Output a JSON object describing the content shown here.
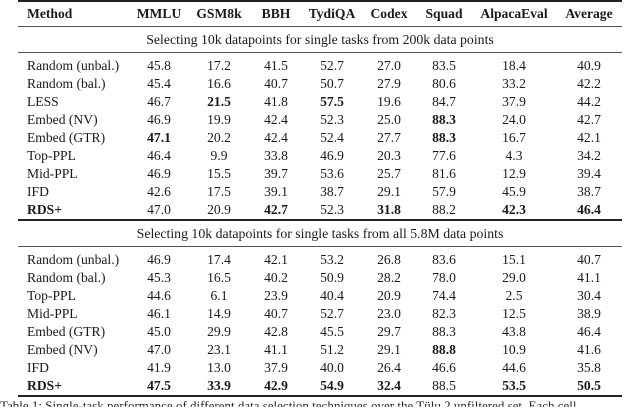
{
  "table": {
    "columns": [
      "Method",
      "MMLU",
      "GSM8k",
      "BBH",
      "TydiQA",
      "Codex",
      "Squad",
      "AlpacaEval",
      "Average"
    ],
    "sections": [
      {
        "title": "Selecting 10k datapoints for single tasks from 200k data points",
        "rows": [
          {
            "method": "Random (unbal.)",
            "values": [
              "45.8",
              "17.2",
              "41.5",
              "52.7",
              "27.0",
              "83.5",
              "18.4",
              "40.9"
            ],
            "bold": []
          },
          {
            "method": "Random (bal.)",
            "values": [
              "45.4",
              "16.6",
              "40.7",
              "50.7",
              "27.9",
              "80.6",
              "33.2",
              "42.2"
            ],
            "bold": []
          },
          {
            "method": "LESS",
            "values": [
              "46.7",
              "21.5",
              "41.8",
              "57.5",
              "19.6",
              "84.7",
              "37.9",
              "44.2"
            ],
            "bold": [
              1,
              3
            ]
          },
          {
            "method": "Embed (NV)",
            "values": [
              "46.9",
              "19.9",
              "42.4",
              "52.3",
              "25.0",
              "88.3",
              "24.0",
              "42.7"
            ],
            "bold": [
              5
            ]
          },
          {
            "method": "Embed (GTR)",
            "values": [
              "47.1",
              "20.2",
              "42.4",
              "52.4",
              "27.7",
              "88.3",
              "16.7",
              "42.1"
            ],
            "bold": [
              0,
              5
            ]
          },
          {
            "method": "Top-PPL",
            "values": [
              "46.4",
              "9.9",
              "33.8",
              "46.9",
              "20.3",
              "77.6",
              "4.3",
              "34.2"
            ],
            "bold": []
          },
          {
            "method": "Mid-PPL",
            "values": [
              "46.9",
              "15.5",
              "39.7",
              "53.6",
              "25.7",
              "81.6",
              "12.9",
              "39.4"
            ],
            "bold": []
          },
          {
            "method": "IFD",
            "values": [
              "42.6",
              "17.5",
              "39.1",
              "38.7",
              "29.1",
              "57.9",
              "45.9",
              "38.7"
            ],
            "bold": []
          },
          {
            "method": "RDS+",
            "values": [
              "47.0",
              "20.9",
              "42.7",
              "52.3",
              "31.8",
              "88.2",
              "42.3",
              "46.4"
            ],
            "bold": [
              2,
              4,
              6,
              7
            ],
            "method_bold": true
          }
        ]
      },
      {
        "title": "Selecting 10k datapoints for single tasks from all 5.8M data points",
        "rows": [
          {
            "method": "Random (unbal.)",
            "values": [
              "46.9",
              "17.4",
              "42.1",
              "53.2",
              "26.8",
              "83.6",
              "15.1",
              "40.7"
            ],
            "bold": []
          },
          {
            "method": "Random (bal.)",
            "values": [
              "45.3",
              "16.5",
              "40.2",
              "50.9",
              "28.2",
              "78.0",
              "29.0",
              "41.1"
            ],
            "bold": []
          },
          {
            "method": "Top-PPL",
            "values": [
              "44.6",
              "6.1",
              "23.9",
              "40.4",
              "20.9",
              "74.4",
              "2.5",
              "30.4"
            ],
            "bold": []
          },
          {
            "method": "Mid-PPL",
            "values": [
              "46.1",
              "14.9",
              "40.7",
              "52.7",
              "23.0",
              "82.3",
              "12.5",
              "38.9"
            ],
            "bold": []
          },
          {
            "method": "Embed (GTR)",
            "values": [
              "45.0",
              "29.9",
              "42.8",
              "45.5",
              "29.7",
              "88.3",
              "43.8",
              "46.4"
            ],
            "bold": []
          },
          {
            "method": "Embed (NV)",
            "values": [
              "47.0",
              "23.1",
              "41.1",
              "51.2",
              "29.1",
              "88.8",
              "10.9",
              "41.6"
            ],
            "bold": [
              5
            ]
          },
          {
            "method": "IFD",
            "values": [
              "41.9",
              "13.0",
              "37.9",
              "40.0",
              "26.4",
              "46.6",
              "44.6",
              "35.8"
            ],
            "bold": []
          },
          {
            "method": "RDS+",
            "values": [
              "47.5",
              "33.9",
              "42.9",
              "54.9",
              "32.4",
              "88.5",
              "53.5",
              "50.5"
            ],
            "bold": [
              0,
              1,
              2,
              3,
              4,
              6,
              7
            ],
            "method_bold": true
          }
        ]
      }
    ]
  },
  "caption": "Table 1: Single-task performance of different data selection techniques over the Tülu 2 unfiltered set. Each cell"
}
